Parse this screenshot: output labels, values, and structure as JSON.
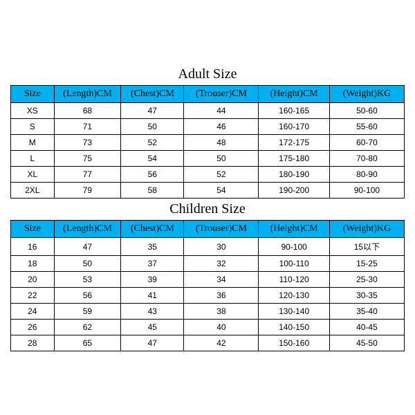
{
  "adult": {
    "title": "Adult Size",
    "columns": [
      "Size",
      "(Length)CM",
      "(Chest)CM",
      "(Trouser)CM",
      "(Height)CM",
      "(Weight)KG"
    ],
    "rows": [
      [
        "XS",
        "68",
        "47",
        "44",
        "160-165",
        "50-60"
      ],
      [
        "S",
        "71",
        "50",
        "46",
        "160-170",
        "55-60"
      ],
      [
        "M",
        "73",
        "52",
        "48",
        "172-175",
        "60-70"
      ],
      [
        "L",
        "75",
        "54",
        "50",
        "175-180",
        "70-80"
      ],
      [
        "XL",
        "77",
        "56",
        "52",
        "180-190",
        "80-90"
      ],
      [
        "2XL",
        "79",
        "58",
        "54",
        "190-200",
        "90-100"
      ]
    ]
  },
  "children": {
    "title": "Children Size",
    "columns": [
      "Size",
      "(Length)CM",
      "(Chest)CM",
      "(Trouser)CM",
      "(Height)CM",
      "(Weight)KG"
    ],
    "rows": [
      [
        "16",
        "47",
        "35",
        "30",
        "90-100",
        "15以下"
      ],
      [
        "18",
        "50",
        "37",
        "32",
        "100-110",
        "15-25"
      ],
      [
        "20",
        "53",
        "39",
        "34",
        "110-120",
        "25-30"
      ],
      [
        "22",
        "56",
        "41",
        "36",
        "120-130",
        "30-35"
      ],
      [
        "24",
        "59",
        "43",
        "38",
        "130-140",
        "35-40"
      ],
      [
        "26",
        "62",
        "45",
        "40",
        "140-150",
        "40-45"
      ],
      [
        "28",
        "65",
        "47",
        "42",
        "150-160",
        "45-50"
      ]
    ]
  },
  "style": {
    "header_bg": "#00b0f0",
    "border_color": "#000000",
    "title_fontsize": 20,
    "header_fontsize": 14,
    "cell_fontsize": 12,
    "title_font": "Times New Roman",
    "header_font": "Times New Roman",
    "cell_font": "Arial"
  }
}
